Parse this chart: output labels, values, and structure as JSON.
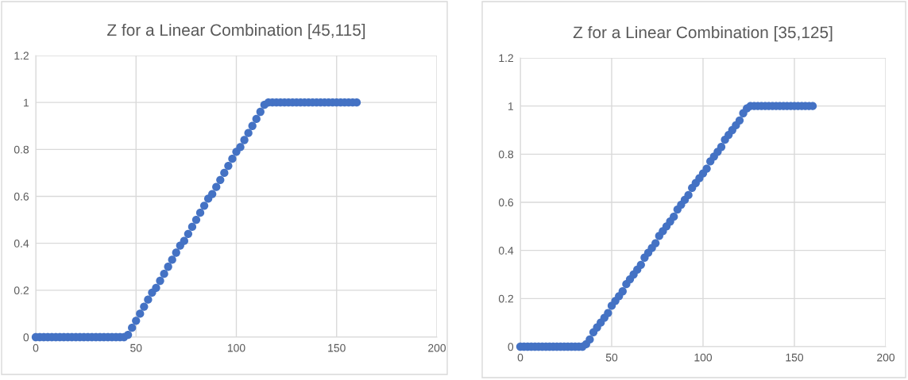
{
  "chart_data": [
    {
      "type": "scatter",
      "title": "Z for a Linear Combination [45,115]",
      "marker": "circle",
      "grid": true,
      "x": [
        0,
        2,
        4,
        6,
        8,
        10,
        12,
        14,
        16,
        18,
        20,
        22,
        24,
        26,
        28,
        30,
        32,
        34,
        36,
        38,
        40,
        42,
        44,
        46,
        48,
        50,
        52,
        54,
        56,
        58,
        60,
        62,
        64,
        66,
        68,
        70,
        72,
        74,
        76,
        78,
        80,
        82,
        84,
        86,
        88,
        90,
        92,
        94,
        96,
        98,
        100,
        102,
        104,
        106,
        108,
        110,
        112,
        114,
        116,
        118,
        120,
        122,
        124,
        126,
        128,
        130,
        132,
        134,
        136,
        138,
        140,
        142,
        144,
        146,
        148,
        150,
        152,
        154,
        156,
        158,
        160
      ],
      "series": [
        {
          "color": "#4472c4",
          "values": [
            0,
            0,
            0,
            0,
            0,
            0,
            0,
            0,
            0,
            0,
            0,
            0,
            0,
            0,
            0,
            0,
            0,
            0,
            0,
            0,
            0,
            0,
            0,
            0.01,
            0.04,
            0.07,
            0.1,
            0.13,
            0.16,
            0.19,
            0.21,
            0.24,
            0.27,
            0.3,
            0.33,
            0.36,
            0.39,
            0.41,
            0.44,
            0.47,
            0.5,
            0.53,
            0.56,
            0.59,
            0.61,
            0.64,
            0.67,
            0.7,
            0.73,
            0.76,
            0.79,
            0.81,
            0.84,
            0.87,
            0.9,
            0.93,
            0.96,
            0.99,
            1,
            1,
            1,
            1,
            1,
            1,
            1,
            1,
            1,
            1,
            1,
            1,
            1,
            1,
            1,
            1,
            1,
            1,
            1,
            1,
            1,
            1,
            1
          ]
        }
      ],
      "xlim": [
        0,
        200
      ],
      "xticks": [
        0,
        50,
        100,
        150,
        200
      ],
      "ylim": [
        0,
        1.2
      ],
      "yticks": [
        0,
        0.2,
        0.4,
        0.6,
        0.8,
        1,
        1.2
      ]
    },
    {
      "type": "scatter",
      "title": "Z for a Linear Combination [35,125]",
      "marker": "circle",
      "grid": true,
      "x": [
        0,
        2,
        4,
        6,
        8,
        10,
        12,
        14,
        16,
        18,
        20,
        22,
        24,
        26,
        28,
        30,
        32,
        34,
        36,
        38,
        40,
        42,
        44,
        46,
        48,
        50,
        52,
        54,
        56,
        58,
        60,
        62,
        64,
        66,
        68,
        70,
        72,
        74,
        76,
        78,
        80,
        82,
        84,
        86,
        88,
        90,
        92,
        94,
        96,
        98,
        100,
        102,
        104,
        106,
        108,
        110,
        112,
        114,
        116,
        118,
        120,
        122,
        124,
        126,
        128,
        130,
        132,
        134,
        136,
        138,
        140,
        142,
        144,
        146,
        148,
        150,
        152,
        154,
        156,
        158,
        160
      ],
      "series": [
        {
          "color": "#4472c4",
          "values": [
            0,
            0,
            0,
            0,
            0,
            0,
            0,
            0,
            0,
            0,
            0,
            0,
            0,
            0,
            0,
            0,
            0,
            0,
            0.01,
            0.03,
            0.06,
            0.08,
            0.1,
            0.12,
            0.14,
            0.17,
            0.19,
            0.21,
            0.23,
            0.26,
            0.28,
            0.3,
            0.32,
            0.34,
            0.37,
            0.39,
            0.41,
            0.43,
            0.46,
            0.48,
            0.5,
            0.52,
            0.54,
            0.57,
            0.59,
            0.61,
            0.63,
            0.66,
            0.68,
            0.7,
            0.72,
            0.74,
            0.77,
            0.79,
            0.81,
            0.83,
            0.86,
            0.88,
            0.9,
            0.92,
            0.94,
            0.97,
            0.99,
            1,
            1,
            1,
            1,
            1,
            1,
            1,
            1,
            1,
            1,
            1,
            1,
            1,
            1,
            1,
            1,
            1,
            1
          ]
        }
      ],
      "xlim": [
        0,
        200
      ],
      "xticks": [
        0,
        50,
        100,
        150,
        200
      ],
      "ylim": [
        0,
        1.2
      ],
      "yticks": [
        0,
        0.2,
        0.4,
        0.6,
        0.8,
        1,
        1.2
      ]
    }
  ]
}
